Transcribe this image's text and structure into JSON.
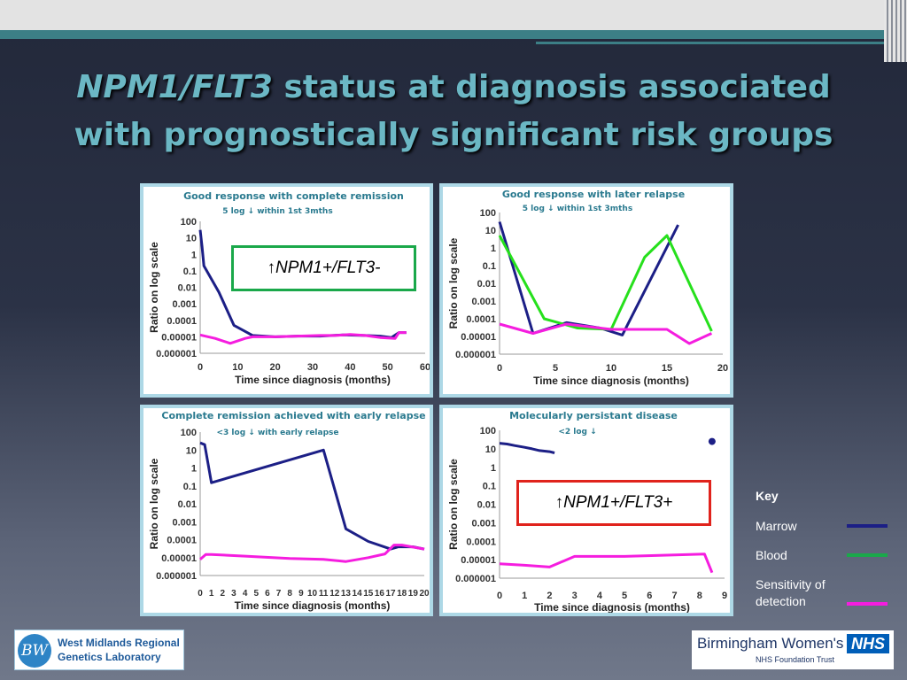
{
  "title": {
    "line1_italic": "NPM1/FLT3",
    "line1_rest": " status at diagnosis associated",
    "line2": "with prognostically significant risk groups"
  },
  "chart_data": [
    {
      "type": "line",
      "title": "Good response with complete remission",
      "subtitle": "5 log ↓ within 1st 3mths",
      "xlabel": "Time since diagnosis (months)",
      "ylabel": "Ratio on log scale",
      "xlim": [
        0,
        60
      ],
      "ylim": [
        1e-06,
        100
      ],
      "y_scale": "log",
      "xticks": [
        "0",
        "10",
        "20",
        "30",
        "40",
        "50",
        "60"
      ],
      "yticks": [
        "100",
        "10",
        "1",
        "0.1",
        "0.01",
        "0.001",
        "0.0001",
        "0.00001",
        "0.000001"
      ],
      "series": [
        {
          "color": "#1c1f86",
          "x": [
            0,
            0.5,
            1,
            5,
            9,
            14,
            20,
            26,
            32,
            38,
            44,
            48,
            51,
            53,
            55
          ],
          "y": [
            30,
            3,
            0.2,
            0.005,
            5e-05,
            1.2e-05,
            1e-05,
            1.1e-05,
            1.1e-05,
            1.3e-05,
            1.2e-05,
            1.1e-05,
            9e-06,
            1.8e-05,
            1.8e-05
          ]
        },
        {
          "color": "#f51ddf",
          "x": [
            0,
            4,
            8,
            12,
            14,
            20,
            26,
            32,
            36,
            40,
            44,
            48,
            52,
            53,
            55
          ],
          "y": [
            1.3e-05,
            8e-06,
            4e-06,
            8e-06,
            1e-05,
            1e-05,
            1.1e-05,
            1.2e-05,
            1.2e-05,
            1.4e-05,
            1.2e-05,
            9e-06,
            8e-06,
            1.8e-05,
            1.8e-05
          ]
        }
      ]
    },
    {
      "type": "line",
      "title": "Good response with later relapse",
      "subtitle": "5 log ↓ within 1st 3mths",
      "xlabel": "Time since diagnosis (months)",
      "ylabel": "Ratio on log scale",
      "xlim": [
        0,
        20
      ],
      "ylim": [
        1e-06,
        100
      ],
      "y_scale": "log",
      "xticks": [
        "0",
        "5",
        "10",
        "15",
        "20"
      ],
      "yticks": [
        "100",
        "10",
        "1",
        "0.1",
        "0.01",
        "0.001",
        "0.0001",
        "0.00001",
        "0.000001"
      ],
      "series": [
        {
          "color": "#1c1f86",
          "x": [
            0,
            3,
            6,
            9,
            11,
            16
          ],
          "y": [
            30,
            1.5e-05,
            6e-05,
            3e-05,
            1.2e-05,
            20
          ]
        },
        {
          "color": "#26e01c",
          "x": [
            0,
            4,
            7,
            10,
            13,
            15,
            19
          ],
          "y": [
            5,
            0.0001,
            3e-05,
            2.5e-05,
            0.3,
            5,
            2e-05
          ]
        },
        {
          "color": "#f51ddf",
          "x": [
            0,
            3,
            6,
            10,
            12,
            15,
            17,
            19
          ],
          "y": [
            5e-05,
            1.5e-05,
            5e-05,
            2.5e-05,
            2.5e-05,
            2.5e-05,
            4e-06,
            1.5e-05
          ]
        }
      ]
    },
    {
      "type": "line",
      "title": "Complete remission achieved with early relapse",
      "subtitle": "<3 log ↓ with early relapse",
      "xlabel": "Time since diagnosis (months)",
      "ylabel": "Ratio on log scale",
      "xlim": [
        0,
        20
      ],
      "ylim": [
        1e-06,
        100
      ],
      "y_scale": "log",
      "xticks": [
        "0",
        "1",
        "2",
        "3",
        "4",
        "5",
        "6",
        "7",
        "8",
        "9",
        "10",
        "11",
        "12",
        "13",
        "14",
        "15",
        "16",
        "17",
        "18",
        "19",
        "20"
      ],
      "yticks": [
        "100",
        "10",
        "1",
        "0.1",
        "0.01",
        "0.001",
        "0.0001",
        "0.00001",
        "0.000001"
      ],
      "series": [
        {
          "color": "#1c1f86",
          "x": [
            0,
            0.4,
            1,
            11,
            13,
            15,
            17,
            17.7,
            18,
            19,
            20
          ],
          "y": [
            25,
            20,
            0.15,
            10,
            0.0004,
            8e-05,
            3e-05,
            4e-05,
            4e-05,
            4e-05,
            3e-05
          ]
        },
        {
          "color": "#f51ddf",
          "x": [
            0,
            0.5,
            1,
            4,
            8,
            11,
            13,
            15,
            16.5,
            17.3,
            18,
            20
          ],
          "y": [
            8e-06,
            1.5e-05,
            1.5e-05,
            1.2e-05,
            9e-06,
            8e-06,
            6e-06,
            1e-05,
            1.6e-05,
            5e-05,
            5e-05,
            3e-05
          ]
        }
      ]
    },
    {
      "type": "line",
      "title": "Molecularly persistant disease",
      "subtitle": "<2 log ↓",
      "xlabel": "Time since diagnosis (months)",
      "ylabel": "Ratio on log scale",
      "xlim": [
        0,
        9
      ],
      "ylim": [
        1e-06,
        100
      ],
      "y_scale": "log",
      "xticks": [
        "0",
        "1",
        "2",
        "3",
        "4",
        "5",
        "6",
        "7",
        "8",
        "9"
      ],
      "yticks": [
        "100",
        "10",
        "1",
        "0.1",
        "0.01",
        "0.001",
        "0.0001",
        "0.00001",
        "0.000001"
      ],
      "series": [
        {
          "color": "#1c1f86",
          "x": [
            0,
            0.3,
            0.6,
            1,
            1.3,
            1.6,
            2,
            2.2
          ],
          "y": [
            20,
            18,
            15,
            12,
            10,
            8,
            7,
            6
          ]
        },
        {
          "color": "#1c1f86",
          "marker_only": true,
          "x": [
            8.5
          ],
          "y": [
            25
          ]
        },
        {
          "color": "#f51ddf",
          "x": [
            0,
            1,
            2,
            3,
            5,
            7,
            8.2,
            8.5
          ],
          "y": [
            6e-06,
            5e-06,
            4e-06,
            1.5e-05,
            1.5e-05,
            1.8e-05,
            2e-05,
            2e-06
          ]
        }
      ]
    }
  ],
  "callouts": [
    {
      "label": "↑NPM1+/FLT3-",
      "color": "#1aa84a"
    },
    {
      "label": "↑NPM1+/FLT3+",
      "color": "#e0231c"
    }
  ],
  "key": {
    "title": "Key",
    "items": [
      {
        "label": "Marrow",
        "color": "#1c1f86"
      },
      {
        "label": "Blood",
        "color": "#1aa84a"
      },
      {
        "label": "Sensitivity of detection",
        "color": "#f51ddf"
      }
    ]
  },
  "logos": {
    "left_monogram": "BW",
    "left_line1": "West Midlands Regional",
    "left_line2": "Genetics Laboratory",
    "right_name": "Birmingham Women's",
    "right_badge": "NHS",
    "right_trust": "NHS Foundation Trust"
  }
}
